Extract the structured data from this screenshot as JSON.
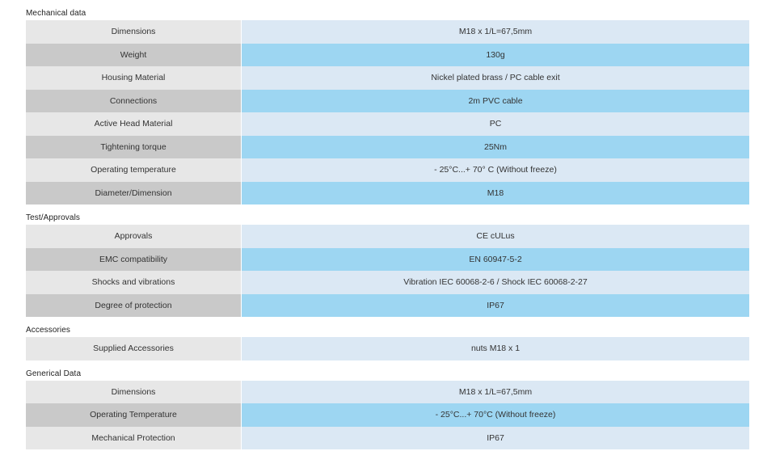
{
  "sections": [
    {
      "title": "Mechanical data",
      "rows": [
        {
          "label": "Dimensions",
          "value": "M18 x 1/L=67,5mm"
        },
        {
          "label": "Weight",
          "value": "130g"
        },
        {
          "label": "Housing Material",
          "value": "Nickel plated brass / PC cable exit"
        },
        {
          "label": "Connections",
          "value": "2m PVC cable"
        },
        {
          "label": "Active Head Material",
          "value": "PC"
        },
        {
          "label": "Tightening torque",
          "value": "25Nm"
        },
        {
          "label": "Operating temperature",
          "value": "- 25°C...+ 70° C (Without freeze)"
        },
        {
          "label": "Diameter/Dimension",
          "value": "M18"
        }
      ]
    },
    {
      "title": "Test/Approvals",
      "rows": [
        {
          "label": "Approvals",
          "value": "CE cULus"
        },
        {
          "label": "EMC compatibility",
          "value": "EN 60947-5-2"
        },
        {
          "label": "Shocks and vibrations",
          "value": "Vibration IEC 60068-2-6 / Shock IEC 60068-2-27"
        },
        {
          "label": "Degree of protection",
          "value": "IP67"
        }
      ]
    },
    {
      "title": "Accessories",
      "rows": [
        {
          "label": "Supplied Accessories",
          "value": "nuts M18 x 1"
        }
      ]
    },
    {
      "title": "Generical Data",
      "rows": [
        {
          "label": "Dimensions",
          "value": "M18 x 1/L=67,5mm"
        },
        {
          "label": "Operating Temperature",
          "value": "- 25°C...+ 70°C (Without freeze)"
        },
        {
          "label": "Mechanical Protection",
          "value": "IP67"
        }
      ]
    }
  ],
  "colors": {
    "label_light": "#e7e7e7",
    "label_dark": "#c9c9c9",
    "value_light": "#dbe8f4",
    "value_dark": "#9dd6f2"
  }
}
